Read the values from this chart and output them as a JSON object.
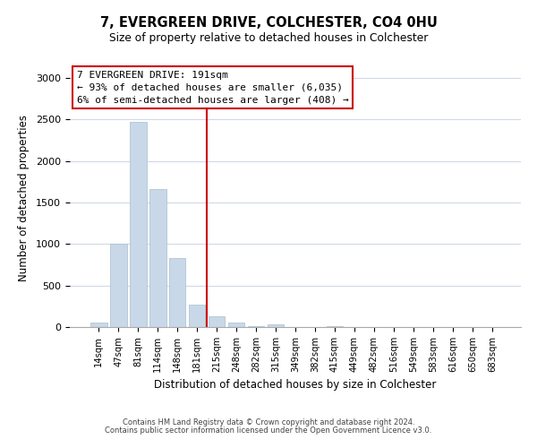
{
  "title": "7, EVERGREEN DRIVE, COLCHESTER, CO4 0HU",
  "subtitle": "Size of property relative to detached houses in Colchester",
  "xlabel": "Distribution of detached houses by size in Colchester",
  "ylabel": "Number of detached properties",
  "bar_labels": [
    "14sqm",
    "47sqm",
    "81sqm",
    "114sqm",
    "148sqm",
    "181sqm",
    "215sqm",
    "248sqm",
    "282sqm",
    "315sqm",
    "349sqm",
    "382sqm",
    "415sqm",
    "449sqm",
    "482sqm",
    "516sqm",
    "549sqm",
    "583sqm",
    "616sqm",
    "650sqm",
    "683sqm"
  ],
  "bar_heights": [
    55,
    1000,
    2470,
    1660,
    830,
    270,
    125,
    55,
    10,
    35,
    0,
    0,
    15,
    0,
    0,
    0,
    0,
    0,
    0,
    0,
    0
  ],
  "bar_color": "#c8d8e8",
  "bar_edge_color": "#a8bece",
  "vline_x": 6.0,
  "vline_color": "#cc0000",
  "annotation_title": "7 EVERGREEN DRIVE: 191sqm",
  "annotation_line1": "← 93% of detached houses are smaller (6,035)",
  "annotation_line2": "6% of semi-detached houses are larger (408) →",
  "ylim": [
    0,
    3100
  ],
  "yticks": [
    0,
    500,
    1000,
    1500,
    2000,
    2500,
    3000
  ],
  "footer_line1": "Contains HM Land Registry data © Crown copyright and database right 2024.",
  "footer_line2": "Contains public sector information licensed under the Open Government Licence v3.0.",
  "background_color": "#ffffff",
  "grid_color": "#d0d8e8"
}
